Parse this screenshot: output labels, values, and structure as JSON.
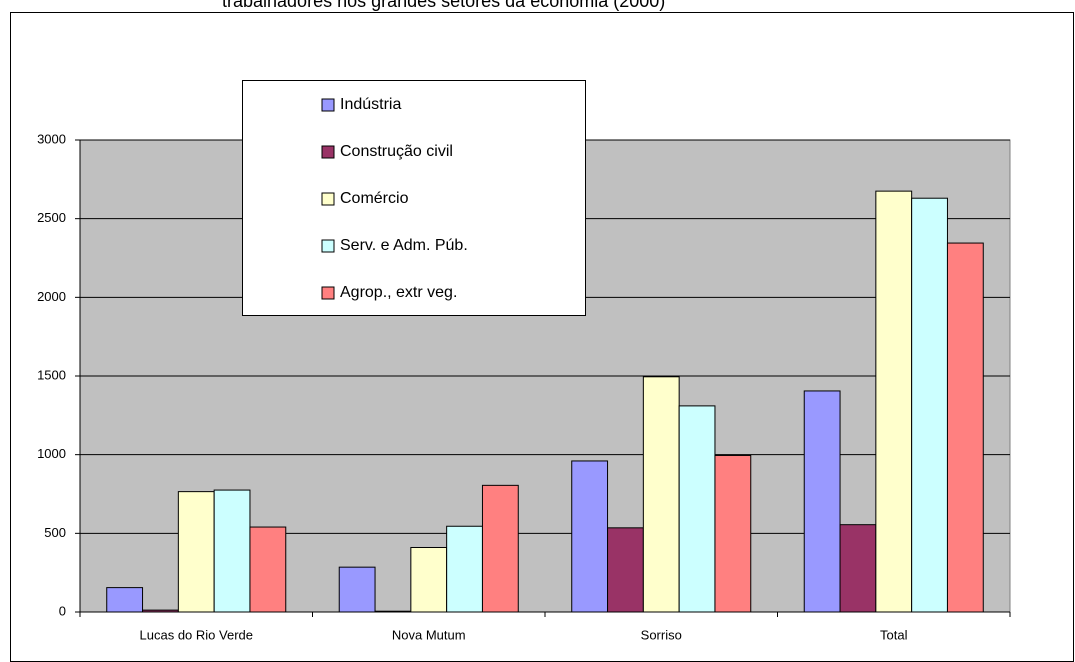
{
  "chart_data": {
    "type": "bar",
    "title": "trabalhadores nos grandes setores da economia (2000)",
    "categories": [
      "Lucas do Rio Verde",
      "Nova Mutum",
      "Sorriso",
      "Total"
    ],
    "series": [
      {
        "name": "Indústria",
        "color": "#9999ff",
        "values": [
          155,
          285,
          960,
          1405
        ]
      },
      {
        "name": "Construção civil",
        "color": "#993366",
        "values": [
          12,
          5,
          535,
          555
        ]
      },
      {
        "name": "Comércio",
        "color": "#ffffcc",
        "values": [
          765,
          410,
          1495,
          2675
        ]
      },
      {
        "name": "Serv. e Adm. Púb.",
        "color": "#ccffff",
        "values": [
          775,
          545,
          1310,
          2630
        ]
      },
      {
        "name": "Agrop., extr veg.",
        "color": "#ff8080",
        "values": [
          540,
          805,
          995,
          2345
        ]
      }
    ],
    "ylim": [
      0,
      3000
    ],
    "yticks": [
      0,
      500,
      1000,
      1500,
      2000,
      2500,
      3000
    ],
    "grid": true,
    "legend": "top-left"
  }
}
